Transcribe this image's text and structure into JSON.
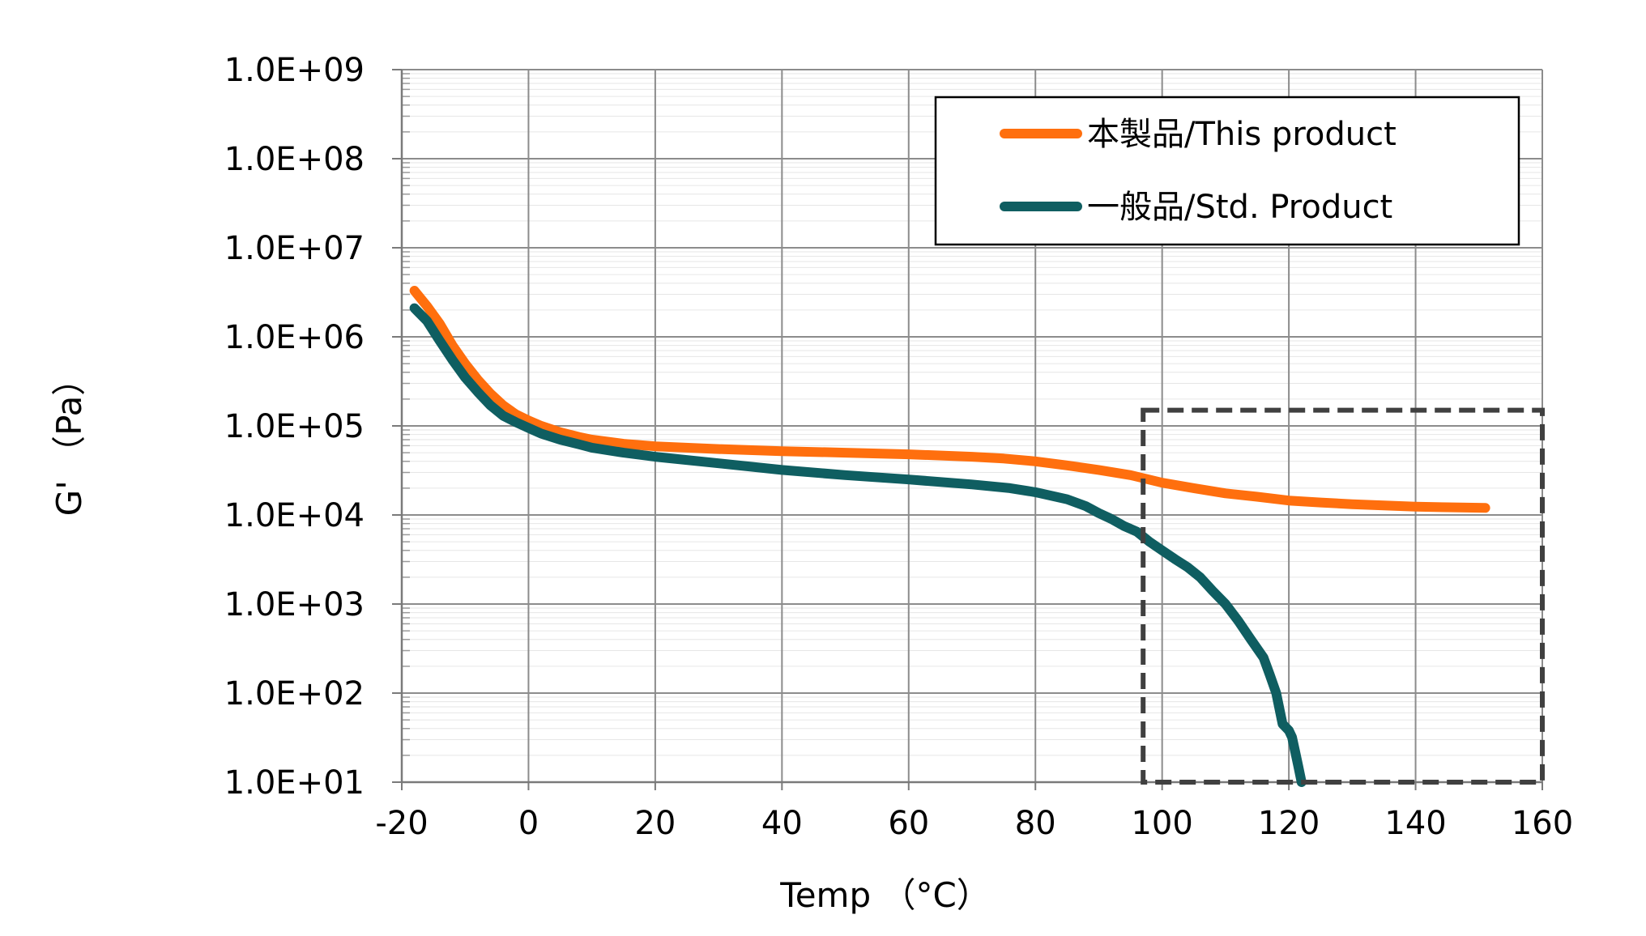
{
  "chart_data": {
    "type": "line",
    "title": "",
    "xlabel": "Temp （°C）",
    "ylabel": "G' （Pa）",
    "x_scale": "linear",
    "y_scale": "log",
    "xlim": [
      -20,
      160
    ],
    "ylim": [
      10,
      1000000000
    ],
    "x_ticks": [
      -20,
      0,
      20,
      40,
      60,
      80,
      100,
      120,
      140,
      160
    ],
    "x_tick_labels": [
      "-20",
      "0",
      "20",
      "40",
      "60",
      "80",
      "100",
      "120",
      "140",
      "160"
    ],
    "y_ticks": [
      10,
      100,
      1000,
      10000,
      100000,
      1000000,
      10000000,
      100000000,
      1000000000
    ],
    "y_tick_labels": [
      "1.0E+01",
      "1.0E+02",
      "1.0E+03",
      "1.0E+04",
      "1.0E+05",
      "1.0E+06",
      "1.0E+07",
      "1.0E+08",
      "1.0E+09"
    ],
    "grid": true,
    "minor_grid": true,
    "legend_position": "top-right",
    "series": [
      {
        "name": "本製品/This product",
        "color": "#ff6f0e",
        "points": [
          [
            -18,
            3300000
          ],
          [
            -16,
            2200000
          ],
          [
            -14,
            1400000
          ],
          [
            -12,
            800000
          ],
          [
            -10,
            500000
          ],
          [
            -8,
            330000
          ],
          [
            -6,
            230000
          ],
          [
            -4,
            170000
          ],
          [
            -2,
            135000
          ],
          [
            0,
            115000
          ],
          [
            2,
            100000
          ],
          [
            5,
            85000
          ],
          [
            8,
            75000
          ],
          [
            10,
            70000
          ],
          [
            15,
            63000
          ],
          [
            20,
            59000
          ],
          [
            30,
            55000
          ],
          [
            40,
            52000
          ],
          [
            50,
            50000
          ],
          [
            60,
            48000
          ],
          [
            70,
            45000
          ],
          [
            75,
            43000
          ],
          [
            80,
            40000
          ],
          [
            85,
            36000
          ],
          [
            90,
            32000
          ],
          [
            95,
            28000
          ],
          [
            100,
            23000
          ],
          [
            105,
            20000
          ],
          [
            110,
            17500
          ],
          [
            115,
            16000
          ],
          [
            120,
            14500
          ],
          [
            125,
            13800
          ],
          [
            130,
            13200
          ],
          [
            135,
            12800
          ],
          [
            140,
            12400
          ],
          [
            145,
            12200
          ],
          [
            151,
            12000
          ]
        ]
      },
      {
        "name": "一般品/Std. Product",
        "color": "#0f5e61",
        "points": [
          [
            -18,
            2100000
          ],
          [
            -16,
            1500000
          ],
          [
            -14,
            900000
          ],
          [
            -12,
            550000
          ],
          [
            -10,
            350000
          ],
          [
            -8,
            240000
          ],
          [
            -6,
            170000
          ],
          [
            -4,
            130000
          ],
          [
            -2,
            110000
          ],
          [
            0,
            95000
          ],
          [
            2,
            82000
          ],
          [
            5,
            70000
          ],
          [
            8,
            62000
          ],
          [
            10,
            57000
          ],
          [
            15,
            50000
          ],
          [
            20,
            45000
          ],
          [
            30,
            38000
          ],
          [
            40,
            32000
          ],
          [
            50,
            28000
          ],
          [
            60,
            25000
          ],
          [
            70,
            22000
          ],
          [
            76,
            20000
          ],
          [
            80,
            18000
          ],
          [
            85,
            15000
          ],
          [
            88,
            12500
          ],
          [
            90,
            10500
          ],
          [
            92,
            9000
          ],
          [
            94,
            7500
          ],
          [
            96,
            6500
          ],
          [
            98,
            5000
          ],
          [
            100,
            4000
          ],
          [
            102,
            3200
          ],
          [
            104,
            2600
          ],
          [
            106,
            2000
          ],
          [
            108,
            1400
          ],
          [
            110,
            1000
          ],
          [
            112,
            650
          ],
          [
            114,
            400
          ],
          [
            116,
            250
          ],
          [
            117,
            160
          ],
          [
            118,
            100
          ],
          [
            119,
            45
          ],
          [
            120,
            38
          ],
          [
            120.5,
            32
          ],
          [
            121,
            22
          ],
          [
            121.5,
            15
          ],
          [
            122,
            10
          ]
        ]
      }
    ],
    "annotations": [
      {
        "type": "dashed-rectangle",
        "x_range": [
          97,
          160
        ],
        "y_range": [
          10,
          150000
        ],
        "color": "#404040"
      }
    ]
  }
}
